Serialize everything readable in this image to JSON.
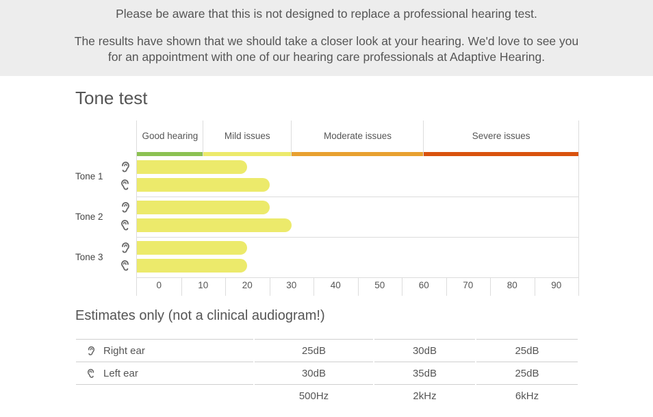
{
  "notice": {
    "line1": "Please be aware that this is not designed to replace a professional hearing test.",
    "line2": "The results have shown that we should take a closer look at your hearing. We'd love to see you for an appointment with one of our hearing care professionals at Adaptive Hearing."
  },
  "tone_title": "Tone test",
  "estimates_title": "Estimates only (not a clinical audiogram!)",
  "chart_data": {
    "type": "bar",
    "orientation": "horizontal",
    "xlim": [
      0,
      100
    ],
    "ticks": [
      "0",
      "10",
      "20",
      "30",
      "40",
      "50",
      "60",
      "70",
      "80",
      "90"
    ],
    "categories": [
      {
        "label": "Good hearing",
        "from": 0,
        "to": 15,
        "color": "#8cc152"
      },
      {
        "label": "Mild issues",
        "from": 15,
        "to": 35,
        "color": "#ecea6b"
      },
      {
        "label": "Moderate issues",
        "from": 35,
        "to": 65,
        "color": "#e8a030"
      },
      {
        "label": "Severe issues",
        "from": 65,
        "to": 100,
        "color": "#d9520e"
      }
    ],
    "groups": [
      {
        "label": "Tone 1",
        "right": 25,
        "left": 30
      },
      {
        "label": "Tone 2",
        "right": 30,
        "left": 35
      },
      {
        "label": "Tone 3",
        "right": 25,
        "left": 25
      }
    ],
    "bar_color": "#ecea6b"
  },
  "table": {
    "rows": [
      {
        "label": "Right ear",
        "icon": "right-ear-icon",
        "values": [
          "25dB",
          "30dB",
          "25dB"
        ]
      },
      {
        "label": "Left ear",
        "icon": "left-ear-icon",
        "values": [
          "30dB",
          "35dB",
          "25dB"
        ]
      }
    ],
    "frequencies": [
      "500Hz",
      "2kHz",
      "6kHz"
    ]
  }
}
